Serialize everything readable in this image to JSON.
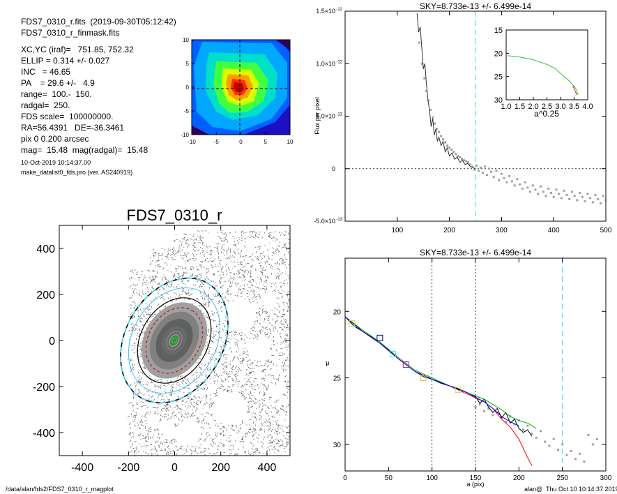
{
  "header": {
    "file_line": "FDS7_0310_r.fits  (2019-09-30T05:12:42)",
    "mask_line": "FDS7_0310_r_finmask.fits",
    "params": [
      "XC,YC (iraf)=   751.85, 752.32",
      "ELLIP = 0.314 +/- 0.027",
      "INC   = 46.65",
      "PA    = 29.6 +/-   4.9",
      "range=  100.-  150.",
      "radgal=  250.",
      "FDS scale=  100000000.",
      "RA=56.4391   DE=-36.3461",
      "pix 0 0.200 arcsec",
      "mag=  15.48  mag(radgal)=  15.48"
    ],
    "date": "10-Oct-2019 10:14:37.00",
    "program": "make_datalist0_fds.pro (ver. AS240919)"
  },
  "footer": {
    "path": "/data/alan/fds2/FDS7_0310_r_magplot",
    "stamp": "alan@  Thu Oct 10 10:14:37 2019"
  },
  "chart_data": [
    {
      "type": "heatmap",
      "title": "",
      "xlim": [
        -10,
        10
      ],
      "ylim": [
        -10,
        10
      ],
      "xticks": [
        "-10",
        "-5",
        "0",
        "5",
        "10"
      ],
      "yticks": [
        "10",
        "5",
        "0",
        "-5",
        "-10"
      ]
    },
    {
      "type": "scatter",
      "title": "FDS7_0310_r",
      "xlim": [
        -500,
        500
      ],
      "ylim": [
        -500,
        500
      ],
      "xticks": [
        "-400",
        "-200",
        "0",
        "200",
        "400"
      ],
      "yticks": [
        "400",
        "200",
        "0",
        "-200",
        "-400"
      ]
    },
    {
      "type": "line",
      "title": "SKY=8.733e-13 +/- 6.499e-14",
      "ylabel": "Flux per pixel",
      "xlim": [
        0,
        500
      ],
      "ylim": [
        -5e-13,
        1.5e-12
      ],
      "xticks": [
        "100",
        "200",
        "300",
        "400",
        "500"
      ],
      "yticks": [
        {
          "base": "1.5×10",
          "exp": "-12",
          "value": 1.5e-12
        },
        {
          "base": "1.0×10",
          "exp": "-12",
          "value": 1e-12
        },
        {
          "base": "5.0×10",
          "exp": "-13",
          "value": 5e-13
        },
        {
          "base": "0",
          "exp": "",
          "value": 0
        },
        {
          "base": "-5.0×10",
          "exp": "-13",
          "value": -5e-13
        }
      ],
      "sky_radius": 250,
      "series": [
        {
          "x": [
            138,
            141,
            144,
            147,
            150,
            153,
            156,
            159,
            162,
            165,
            168,
            171,
            174,
            177,
            180,
            184,
            188,
            192,
            196,
            200,
            205,
            210,
            215,
            220,
            225,
            230,
            235,
            240,
            245,
            250
          ],
          "y": [
            1.48e-12,
            1.3e-12,
            1.35e-12,
            1.15e-12,
            9.5e-13,
            1e-12,
            8e-13,
            6.5e-13,
            5.5e-13,
            4e-13,
            4.8e-13,
            3.2e-13,
            3.8e-13,
            2.6e-13,
            3e-13,
            2.2e-13,
            2.6e-13,
            1.6e-13,
            2e-13,
            1.2e-13,
            1.5e-13,
            9e-14,
            1.1e-13,
            6e-14,
            8e-14,
            4e-14,
            5e-14,
            2e-14,
            1e-14,
            0
          ]
        }
      ],
      "points": {
        "x": [
          142,
          148,
          152,
          156,
          160,
          164,
          168,
          172,
          176,
          180,
          184,
          188,
          192,
          196,
          200,
          204,
          208,
          212,
          216,
          220,
          224,
          228,
          232,
          236,
          240,
          244,
          248,
          252,
          256,
          260,
          264,
          268,
          272,
          276,
          280,
          285,
          290,
          295,
          300,
          305,
          310,
          315,
          320,
          325,
          330,
          335,
          340,
          345,
          350,
          355,
          360,
          365,
          370,
          375,
          380,
          385,
          390,
          395,
          400,
          405,
          410,
          415,
          420,
          425,
          430,
          435,
          440,
          445,
          450,
          455,
          460,
          465,
          470,
          475,
          480,
          485,
          490,
          495,
          500
        ],
        "y": [
          1.2e-12,
          1e-12,
          8.6e-13,
          7.4e-13,
          6.5e-13,
          5.6e-13,
          4.9e-13,
          4.3e-13,
          3.8e-13,
          3.5e-13,
          3.1e-13,
          2.8e-13,
          2.5e-13,
          2.2e-13,
          2e-13,
          1.8e-13,
          1.6e-13,
          1.4e-13,
          1.2e-13,
          1.1e-13,
          9.5e-14,
          8e-14,
          7e-14,
          6e-14,
          4e-14,
          2e-14,
          -1e-14,
          3e-14,
          -2e-14,
          1e-14,
          -4e-14,
          2e-14,
          -6e-14,
          0,
          -3e-14,
          -8e-14,
          -2e-14,
          -1.1e-13,
          -5e-14,
          -9e-14,
          -1.3e-13,
          -7e-14,
          -1.2e-13,
          -1.6e-13,
          -1e-13,
          -1.5e-13,
          -1.9e-13,
          -1.3e-13,
          -1.8e-13,
          -2.2e-13,
          -1.6e-13,
          -2e-13,
          -2.4e-13,
          -1.7e-13,
          -2.2e-13,
          -2.6e-13,
          -1.9e-13,
          -2.3e-13,
          -2.7e-13,
          -2e-13,
          -2.4e-13,
          -2.8e-13,
          -2.1e-13,
          -2.5e-13,
          -2.9e-13,
          -2.2e-13,
          -2.6e-13,
          -3e-13,
          -2.3e-13,
          -2.7e-13,
          -3.1e-13,
          -2.4e-13,
          -2.8e-13,
          -3.2e-13,
          -2.5e-13,
          -2.9e-13,
          -3.3e-13,
          -2.6e-13,
          -3e-13
        ]
      }
    },
    {
      "type": "line",
      "title": "",
      "xlabel": "a^0.25",
      "xlim": [
        1.0,
        4.0
      ],
      "ylim": [
        30,
        15
      ],
      "xticks": [
        "1.0",
        "1.5",
        "2.0",
        "2.5",
        "3.0",
        "3.5",
        "4.0"
      ],
      "yticks": [
        "15",
        "20",
        "25",
        "30"
      ],
      "series": [
        {
          "x": [
            1.05,
            1.5,
            2.0,
            2.5,
            2.8,
            3.0,
            3.2,
            3.35,
            3.45,
            3.55,
            3.6,
            3.65
          ],
          "y": [
            20.5,
            20.8,
            21.4,
            22.4,
            23.3,
            24.3,
            25.3,
            26.1,
            26.8,
            27.5,
            28.2,
            28.9
          ]
        },
        {
          "x": [
            3.45,
            3.5,
            3.55,
            3.6
          ],
          "y": [
            27.0,
            27.6,
            28.3,
            29.0
          ]
        }
      ]
    },
    {
      "type": "line",
      "title": "SKY=8.733e-13 +/- 6.499e-14",
      "xlabel": "a (pix)",
      "ylabel": "μ",
      "xlim": [
        0,
        300
      ],
      "ylim": [
        32,
        16
      ],
      "xticks": [
        "0",
        "50",
        "100",
        "150",
        "200",
        "250",
        "300"
      ],
      "yticks": [
        "20",
        "25",
        "30"
      ],
      "fit_range": [
        100,
        150
      ],
      "sky_radius": 250,
      "series": [
        {
          "name": "",
          "color": "#000000",
          "x": [
            0,
            10,
            20,
            30,
            40,
            50,
            60,
            70,
            80,
            90,
            100,
            110,
            120,
            130,
            140,
            150,
            155,
            160,
            165,
            170,
            175,
            180,
            185,
            190,
            195,
            200,
            205,
            210,
            215
          ],
          "y": [
            20.4,
            21.1,
            21.5,
            21.9,
            22.3,
            22.9,
            23.5,
            24.0,
            24.5,
            24.9,
            25.1,
            25.4,
            25.6,
            25.8,
            26.1,
            26.4,
            26.9,
            26.6,
            27.2,
            27.6,
            27.3,
            28.0,
            27.6,
            28.4,
            28.1,
            28.8,
            29.1,
            28.9,
            29.4
          ]
        },
        {
          "name": "",
          "color": "#ff0000",
          "x": [
            0,
            20,
            40,
            60,
            80,
            100,
            120,
            140,
            160,
            170,
            180,
            190,
            200,
            205,
            210,
            215
          ],
          "y": [
            20.4,
            21.5,
            22.4,
            23.5,
            24.5,
            25.1,
            25.6,
            26.2,
            26.8,
            27.3,
            28.1,
            28.7,
            29.6,
            30.3,
            31.0,
            31.6
          ]
        },
        {
          "name": "",
          "color": "#00b000",
          "x": [
            0,
            20,
            40,
            60,
            80,
            100,
            120,
            140,
            160,
            170,
            180,
            190,
            200,
            210,
            220
          ],
          "y": [
            20.4,
            21.4,
            22.3,
            23.4,
            24.4,
            25.0,
            25.6,
            26.1,
            26.6,
            27.0,
            27.4,
            27.9,
            28.2,
            28.4,
            28.8
          ]
        },
        {
          "name": "",
          "color": "#0000ff",
          "x": [
            0,
            20,
            40,
            60,
            80,
            100,
            120,
            140,
            160,
            170,
            180,
            190,
            200
          ],
          "y": [
            20.4,
            21.5,
            22.4,
            23.5,
            24.5,
            25.1,
            25.6,
            26.1,
            26.8,
            27.3,
            27.9,
            28.3,
            28.6
          ]
        }
      ],
      "squares": [
        {
          "x": 8,
          "y": 20.9,
          "color": "#c0e040"
        },
        {
          "x": 40,
          "y": 22.0,
          "color": "#000080"
        },
        {
          "x": 55,
          "y": 23.2,
          "color": "#40e0e0"
        },
        {
          "x": 70,
          "y": 24.0,
          "color": "#a020a0"
        },
        {
          "x": 90,
          "y": 25.0,
          "color": "#e0c040"
        },
        {
          "x": 130,
          "y": 25.9,
          "color": "#c0e040"
        }
      ],
      "points": {
        "x": [
          150,
          155,
          160,
          165,
          170,
          175,
          180,
          185,
          190,
          195,
          200,
          205,
          210,
          215,
          220,
          225,
          230,
          235,
          240,
          245,
          250,
          255,
          260,
          265,
          270,
          275,
          280,
          285,
          290
        ],
        "y": [
          27.2,
          27.0,
          27.5,
          27.3,
          27.8,
          27.6,
          28.0,
          28.3,
          27.9,
          28.5,
          28.2,
          28.9,
          28.6,
          29.2,
          29.5,
          29.0,
          29.8,
          30.1,
          29.6,
          30.4,
          30.0,
          30.8,
          30.5,
          31.1,
          30.7,
          31.3,
          29.3,
          30.0,
          29.6
        ]
      }
    }
  ]
}
